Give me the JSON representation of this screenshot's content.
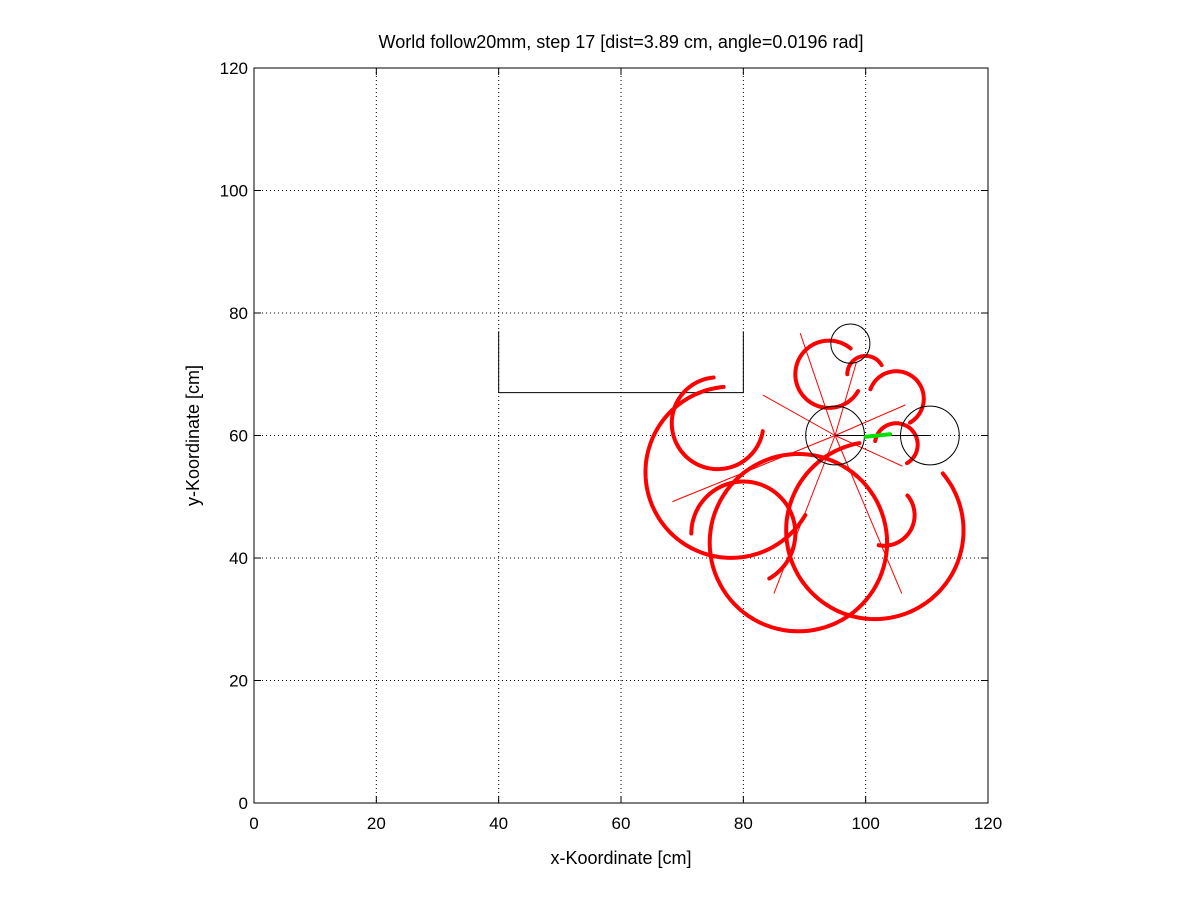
{
  "chart_data": {
    "type": "scatter",
    "title": "World follow20mm, step 17 [dist=3.89 cm, angle=0.0196 rad]",
    "xlabel": "x-Koordinate [cm]",
    "ylabel": "y-Koordinate [cm]",
    "xlim": [
      0,
      120
    ],
    "ylim": [
      0,
      120
    ],
    "xticks": [
      0,
      20,
      40,
      60,
      80,
      100,
      120
    ],
    "yticks": [
      0,
      20,
      40,
      60,
      80,
      100,
      120
    ],
    "xtick_labels": [
      "0",
      "20",
      "40",
      "60",
      "80",
      "100",
      "120"
    ],
    "ytick_labels": [
      "0",
      "20",
      "40",
      "60",
      "80",
      "100",
      "120"
    ],
    "grid": true,
    "colors": {
      "sensor_arcs": "#ff0000",
      "heading": "#00e000",
      "outline": "#000000"
    },
    "wall_polyline": [
      [
        40,
        77
      ],
      [
        40,
        67
      ],
      [
        80,
        67
      ],
      [
        80,
        77
      ]
    ],
    "robot": {
      "center": [
        95,
        60
      ],
      "radius": 4.8
    },
    "objects": [
      {
        "center": [
          110.5,
          60
        ],
        "radius": 4.8
      },
      {
        "center": [
          97.5,
          75
        ],
        "radius": 3.2
      }
    ],
    "heading_line": {
      "from": [
        95,
        60
      ],
      "to": [
        110.5,
        60
      ]
    },
    "heading_marker": {
      "from": [
        100,
        59.8
      ],
      "to": [
        104,
        60.2
      ]
    },
    "sensor_rays": [
      [
        [
          95,
          60
        ],
        [
          83.2,
          66.6
        ]
      ],
      [
        [
          95,
          60
        ],
        [
          89.3,
          76.7
        ]
      ],
      [
        [
          95,
          60
        ],
        [
          98.5,
          72.0
        ]
      ],
      [
        [
          95,
          60
        ],
        [
          106.5,
          65.0
        ]
      ],
      [
        [
          95,
          60
        ],
        [
          106.0,
          55.0
        ]
      ],
      [
        [
          95,
          60
        ],
        [
          105.9,
          34.2
        ]
      ],
      [
        [
          95,
          60
        ],
        [
          85.0,
          34.2
        ]
      ],
      [
        [
          95,
          60
        ],
        [
          68.4,
          49.2
        ]
      ]
    ],
    "sensor_arcs": [
      {
        "center": [
          75.8,
          62.0
        ],
        "radius": 7.5,
        "start_deg": 95,
        "end_deg": 350
      },
      {
        "center": [
          78.0,
          54.0
        ],
        "radius": 14.0,
        "start_deg": 95,
        "end_deg": 330
      },
      {
        "center": [
          94.0,
          70.0
        ],
        "radius": 5.5,
        "start_deg": 50,
        "end_deg": 330
      },
      {
        "center": [
          100.0,
          70.0
        ],
        "radius": 3.0,
        "start_deg": 30,
        "end_deg": 180
      },
      {
        "center": [
          105.0,
          66.0
        ],
        "radius": 4.5,
        "start_deg": -60,
        "end_deg": 160
      },
      {
        "center": [
          105.0,
          58.5
        ],
        "radius": 3.5,
        "start_deg": -60,
        "end_deg": 170
      },
      {
        "center": [
          103.0,
          47.0
        ],
        "radius": 5.0,
        "start_deg": -100,
        "end_deg": 40
      },
      {
        "center": [
          101.5,
          44.5
        ],
        "radius": 14.5,
        "start_deg": 100,
        "end_deg": 400
      },
      {
        "center": [
          89.0,
          42.5
        ],
        "radius": 14.5,
        "start_deg": 20,
        "end_deg": 380
      },
      {
        "center": [
          80.0,
          44.0
        ],
        "radius": 8.5,
        "start_deg": -60,
        "end_deg": 180
      }
    ]
  }
}
